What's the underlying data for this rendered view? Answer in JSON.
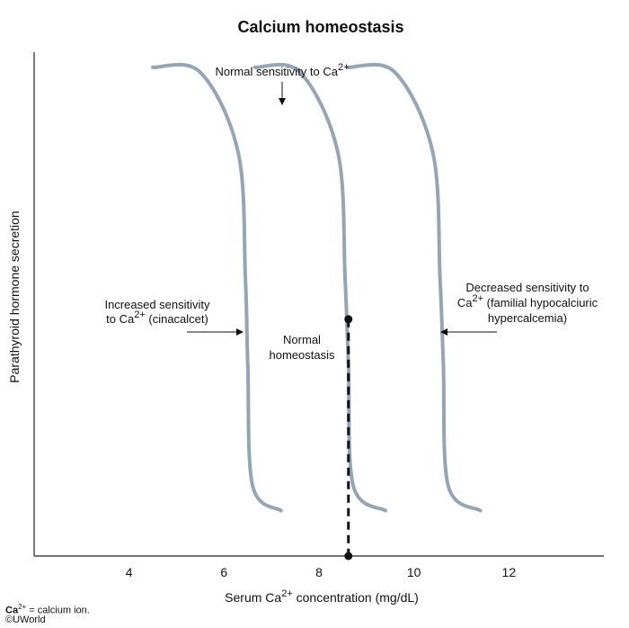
{
  "chart_data": {
    "type": "line",
    "title": "Calcium homeostasis",
    "xlabel": {
      "pre": "Serum Ca",
      "sup": "2+",
      "post": " concentration (mg/dL)"
    },
    "ylabel": "Parathyroid hormone secretion",
    "xlim": [
      2,
      14
    ],
    "ylim": [
      0,
      1
    ],
    "x_ticks": [
      4,
      6,
      8,
      10,
      12
    ],
    "grid": false,
    "series": [
      {
        "x": [
          4.5,
          5.5,
          6.3,
          6.45,
          6.5,
          6.6,
          7.2
        ],
        "y": [
          0.97,
          0.96,
          0.8,
          0.55,
          0.38,
          0.14,
          0.09
        ]
      },
      {
        "x": [
          6.65,
          7.6,
          8.4,
          8.55,
          8.62,
          8.72,
          9.4
        ],
        "y": [
          0.97,
          0.96,
          0.8,
          0.55,
          0.38,
          0.14,
          0.09
        ]
      },
      {
        "x": [
          8.6,
          9.6,
          10.4,
          10.55,
          10.62,
          10.72,
          11.4
        ],
        "y": [
          0.97,
          0.96,
          0.8,
          0.55,
          0.38,
          0.14,
          0.09
        ]
      }
    ],
    "normal_point": {
      "x": 8.62,
      "y": 0.47
    },
    "dropline_to_axis": true,
    "annotations": {
      "normal_sensitivity": {
        "pre": "Normal sensitivity to Ca",
        "sup": "2+"
      },
      "increased": {
        "line1": "Increased sensitivity",
        "line2_pre": "to Ca",
        "line2_sup": "2+",
        "line2_post": " (cinacalcet)"
      },
      "decreased": {
        "line1": "Decreased sensitivity to",
        "line2_pre": "Ca",
        "line2_sup": "2+",
        "line2_post": " (familial hypocalciuric",
        "line3": "hypercalcemia)"
      },
      "normal_homeostasis": {
        "line1": "Normal",
        "line2": "homeostasis"
      }
    }
  },
  "colors": {
    "curve": "#95a5b5",
    "text": "#111111"
  },
  "footnote": {
    "abbr_pre": "Ca",
    "abbr_sup": "2+",
    "abbr_post": " = calcium ion.",
    "copyright": "©UWorld"
  }
}
